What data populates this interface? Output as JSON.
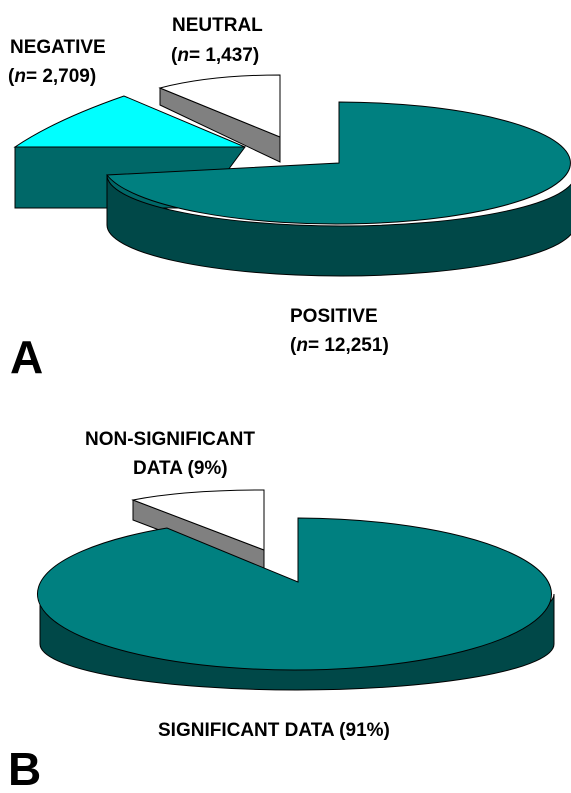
{
  "chart_data": [
    {
      "type": "pie",
      "panel_label": "A",
      "slices": [
        {
          "label": "POSITIVE",
          "count_text": "12,251",
          "value": 12251,
          "color": "#008080"
        },
        {
          "label": "NEGATIVE",
          "count_text": "2,709",
          "value": 2709,
          "color": "#00FFFF"
        },
        {
          "label": "NEUTRAL",
          "count_text": "1,437",
          "value": 1437,
          "color": "#FFFFFF"
        }
      ],
      "n_label": "n",
      "three_d": true,
      "exploded": true
    },
    {
      "type": "pie",
      "panel_label": "B",
      "slices": [
        {
          "label": "SIGNIFICANT DATA (91%)",
          "value": 91,
          "color": "#008080"
        },
        {
          "label_line1": "NON-SIGNIFICANT",
          "label_line2": "DATA (9%)",
          "value": 9,
          "color": "#FFFFFF"
        }
      ],
      "three_d": true,
      "exploded": true
    }
  ]
}
